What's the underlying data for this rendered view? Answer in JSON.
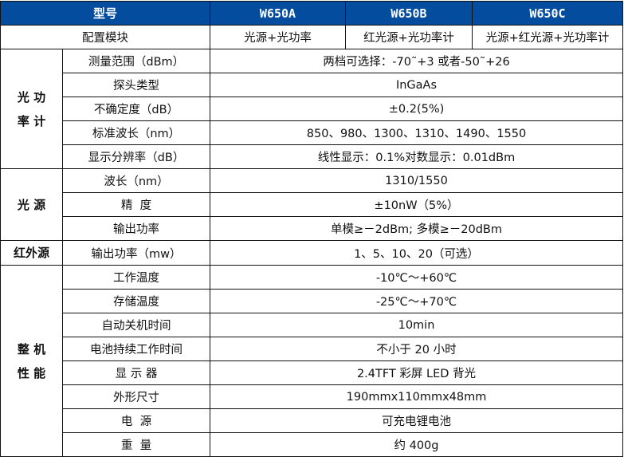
{
  "header": {
    "model_label": "型号",
    "models": [
      "W650A",
      "W650B",
      "W650C"
    ]
  },
  "config": {
    "label": "配置模块",
    "values": [
      "光源+光功率",
      "红光源+光功率计",
      "光源+红光源+光功率计"
    ]
  },
  "colors": {
    "header_bg": "#034c9e",
    "header_text": "#ffffff",
    "border": "#111111"
  },
  "groups": [
    {
      "title_lines": [
        "光 功",
        "率 计"
      ],
      "rows": [
        {
          "label": "测量范围（dBm）",
          "value": "两档可选择：-70˜+3 或者-50˜+26"
        },
        {
          "label": "探头类型",
          "value": "InGaAs"
        },
        {
          "label": "不确定度（dB）",
          "value": "±0.2(5%)"
        },
        {
          "label": "标准波长（nm）",
          "value": "850、980、1300、1310、1490、1550"
        },
        {
          "label": "显示分辨率（dB）",
          "value": "线性显示：0.1%对数显示：0.01dBm"
        }
      ]
    },
    {
      "title_lines": [
        "光 源"
      ],
      "rows": [
        {
          "label": "波长（nm）",
          "value": "1310/1550"
        },
        {
          "label": "精  度",
          "value": "±10nW（5%）"
        },
        {
          "label": "输出功率",
          "value": "单模≥－2dBm; 多模≥－20dBm"
        }
      ]
    },
    {
      "title_lines": [
        "红外源"
      ],
      "rows": [
        {
          "label": "输出功率（mw）",
          "value": "1、5、10、20（可选）"
        }
      ]
    },
    {
      "title_lines": [
        "整 机",
        "性 能"
      ],
      "rows": [
        {
          "label": "工作温度",
          "value": "-10℃～+60℃"
        },
        {
          "label": "存储温度",
          "value": "-25℃～+70℃"
        },
        {
          "label": "自动关机时间",
          "value": "10min"
        },
        {
          "label": "电池持续工作时间",
          "value": "不小于 20 小时"
        },
        {
          "label": "显 示 器",
          "value": "2.4TFT 彩屏 LED 背光"
        },
        {
          "label": "外形尺寸",
          "value": "190mmx110mmx48mm"
        },
        {
          "label": "电  源",
          "value": "可充电锂电池"
        },
        {
          "label": "重  量",
          "value": "约 400g"
        }
      ]
    }
  ]
}
